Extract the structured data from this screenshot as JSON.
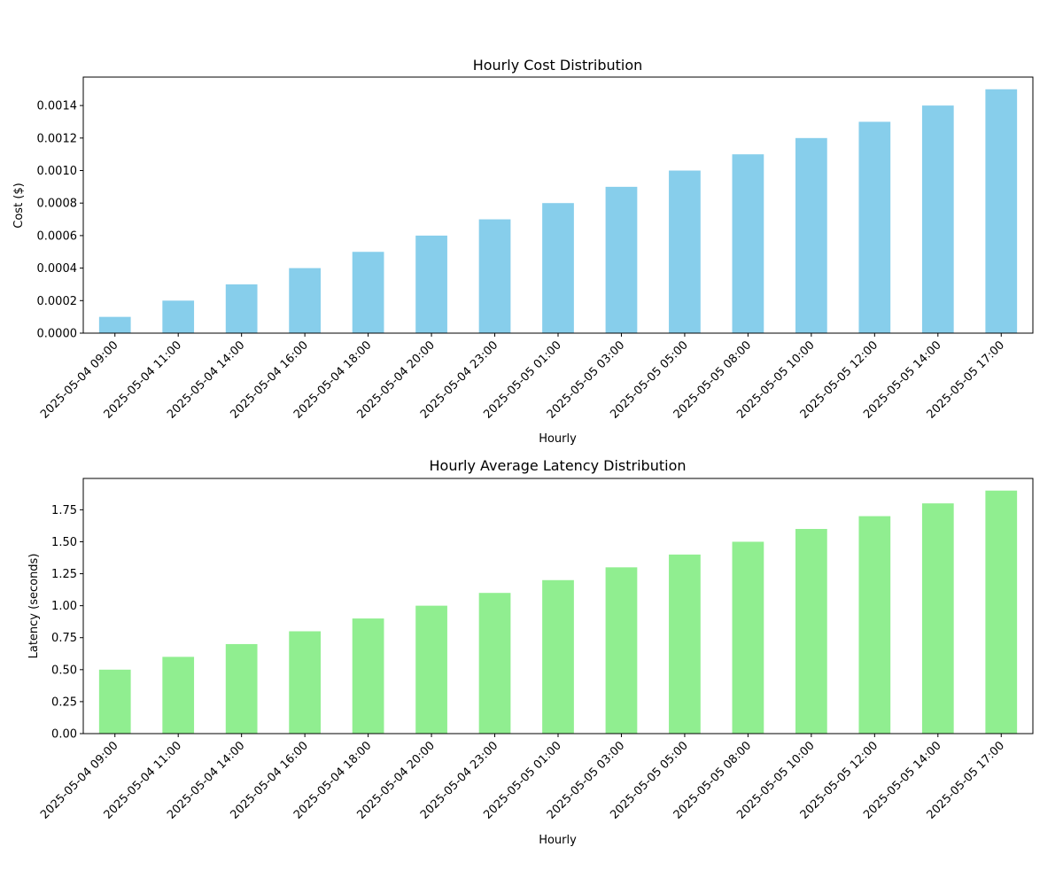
{
  "figure": {
    "background": "#ffffff"
  },
  "chart_data": [
    {
      "type": "bar",
      "title": "Hourly Cost Distribution",
      "xlabel": "Hourly",
      "ylabel": "Cost ($)",
      "color": "#87ceeb",
      "ylim": [
        0,
        0.001575
      ],
      "yticks": [
        0.0,
        0.0002,
        0.0004,
        0.0006,
        0.0008,
        0.001,
        0.0012,
        0.0014
      ],
      "ytick_labels": [
        "0.0000",
        "0.0002",
        "0.0004",
        "0.0006",
        "0.0008",
        "0.0010",
        "0.0012",
        "0.0014"
      ],
      "grid": false,
      "categories": [
        "2025-05-04 09:00",
        "2025-05-04 11:00",
        "2025-05-04 14:00",
        "2025-05-04 16:00",
        "2025-05-04 18:00",
        "2025-05-04 20:00",
        "2025-05-04 23:00",
        "2025-05-05 01:00",
        "2025-05-05 03:00",
        "2025-05-05 05:00",
        "2025-05-05 08:00",
        "2025-05-05 10:00",
        "2025-05-05 12:00",
        "2025-05-05 14:00",
        "2025-05-05 17:00"
      ],
      "values": [
        0.0001,
        0.0002,
        0.0003,
        0.0004,
        0.0005,
        0.0006,
        0.0007,
        0.0008,
        0.0009,
        0.001,
        0.0011,
        0.0012,
        0.0013,
        0.0014,
        0.0015
      ]
    },
    {
      "type": "bar",
      "title": "Hourly Average Latency Distribution",
      "xlabel": "Hourly",
      "ylabel": "Latency (seconds)",
      "color": "#90ee90",
      "ylim": [
        0,
        1.995
      ],
      "yticks": [
        0.0,
        0.25,
        0.5,
        0.75,
        1.0,
        1.25,
        1.5,
        1.75
      ],
      "ytick_labels": [
        "0.00",
        "0.25",
        "0.50",
        "0.75",
        "1.00",
        "1.25",
        "1.50",
        "1.75"
      ],
      "grid": false,
      "categories": [
        "2025-05-04 09:00",
        "2025-05-04 11:00",
        "2025-05-04 14:00",
        "2025-05-04 16:00",
        "2025-05-04 18:00",
        "2025-05-04 20:00",
        "2025-05-04 23:00",
        "2025-05-05 01:00",
        "2025-05-05 03:00",
        "2025-05-05 05:00",
        "2025-05-05 08:00",
        "2025-05-05 10:00",
        "2025-05-05 12:00",
        "2025-05-05 14:00",
        "2025-05-05 17:00"
      ],
      "values": [
        0.5,
        0.6,
        0.7,
        0.8,
        0.9,
        1.0,
        1.1,
        1.2,
        1.3,
        1.4,
        1.5,
        1.6,
        1.7,
        1.8,
        1.9
      ]
    }
  ]
}
